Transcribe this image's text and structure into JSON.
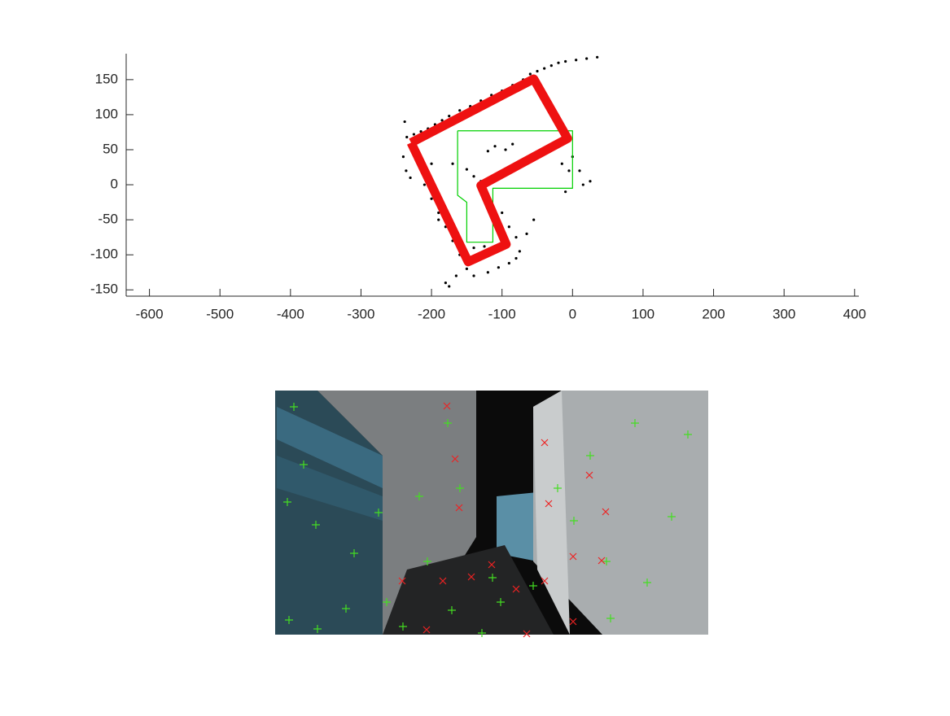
{
  "chart_data": {
    "type": "line",
    "xlim": [
      -633,
      406
    ],
    "ylim": [
      -159,
      187
    ],
    "xticks": [
      -600,
      -500,
      -400,
      -300,
      -200,
      -100,
      0,
      100,
      200,
      300,
      400
    ],
    "yticks": [
      -150,
      -100,
      -50,
      0,
      50,
      100,
      150
    ],
    "series": [
      {
        "style": "dots",
        "color": "#000000",
        "x": [
          -235,
          -225,
          -215,
          -205,
          -195,
          -185,
          -175,
          -160,
          -145,
          -130,
          -115,
          -100,
          -85,
          -70,
          -60,
          -50,
          -40,
          -30,
          -20,
          -10,
          5,
          20,
          35,
          -238,
          -240,
          -236,
          -230,
          -210,
          -200,
          -190,
          -180,
          -170,
          -160,
          -150,
          -140,
          -120,
          -105,
          -90,
          -80,
          -75,
          -65,
          -55,
          -45,
          -35,
          -25,
          -15,
          -5,
          0,
          10,
          25,
          -170,
          -150,
          -140,
          -130,
          -120,
          -110,
          -95,
          -85,
          -180,
          -175,
          -165,
          -200,
          -195,
          -190,
          -140,
          -125,
          -100,
          -90,
          -80,
          -5,
          -15,
          -10,
          15
        ],
        "values": [
          68,
          72,
          76,
          80,
          86,
          92,
          98,
          106,
          112,
          120,
          128,
          134,
          142,
          150,
          158,
          162,
          166,
          170,
          174,
          176,
          178,
          180,
          182,
          90,
          40,
          20,
          10,
          0,
          -20,
          -40,
          -60,
          -80,
          -100,
          -120,
          -130,
          -125,
          -118,
          -112,
          -105,
          -95,
          -70,
          -50,
          45,
          52,
          58,
          62,
          68,
          40,
          20,
          5,
          30,
          22,
          12,
          5,
          48,
          55,
          50,
          58,
          -140,
          -145,
          -130,
          30,
          -10,
          -50,
          -90,
          -88,
          -40,
          -60,
          -75,
          20,
          30,
          -10,
          0
        ]
      },
      {
        "style": "line",
        "color": "#00d000",
        "x": [
          -163,
          0,
          0,
          -113,
          -113,
          -150,
          -150,
          -163,
          -163
        ],
        "values": [
          77,
          77,
          -5,
          -5,
          -82,
          -82,
          -25,
          -15,
          77
        ]
      },
      {
        "style": "thick-line",
        "color": "#ee1111",
        "x": [
          -229,
          -55,
          -7,
          -130,
          -94,
          -148,
          -229
        ],
        "values": [
          60,
          151,
          66,
          -1,
          -85,
          -110,
          60
        ]
      }
    ]
  }
}
